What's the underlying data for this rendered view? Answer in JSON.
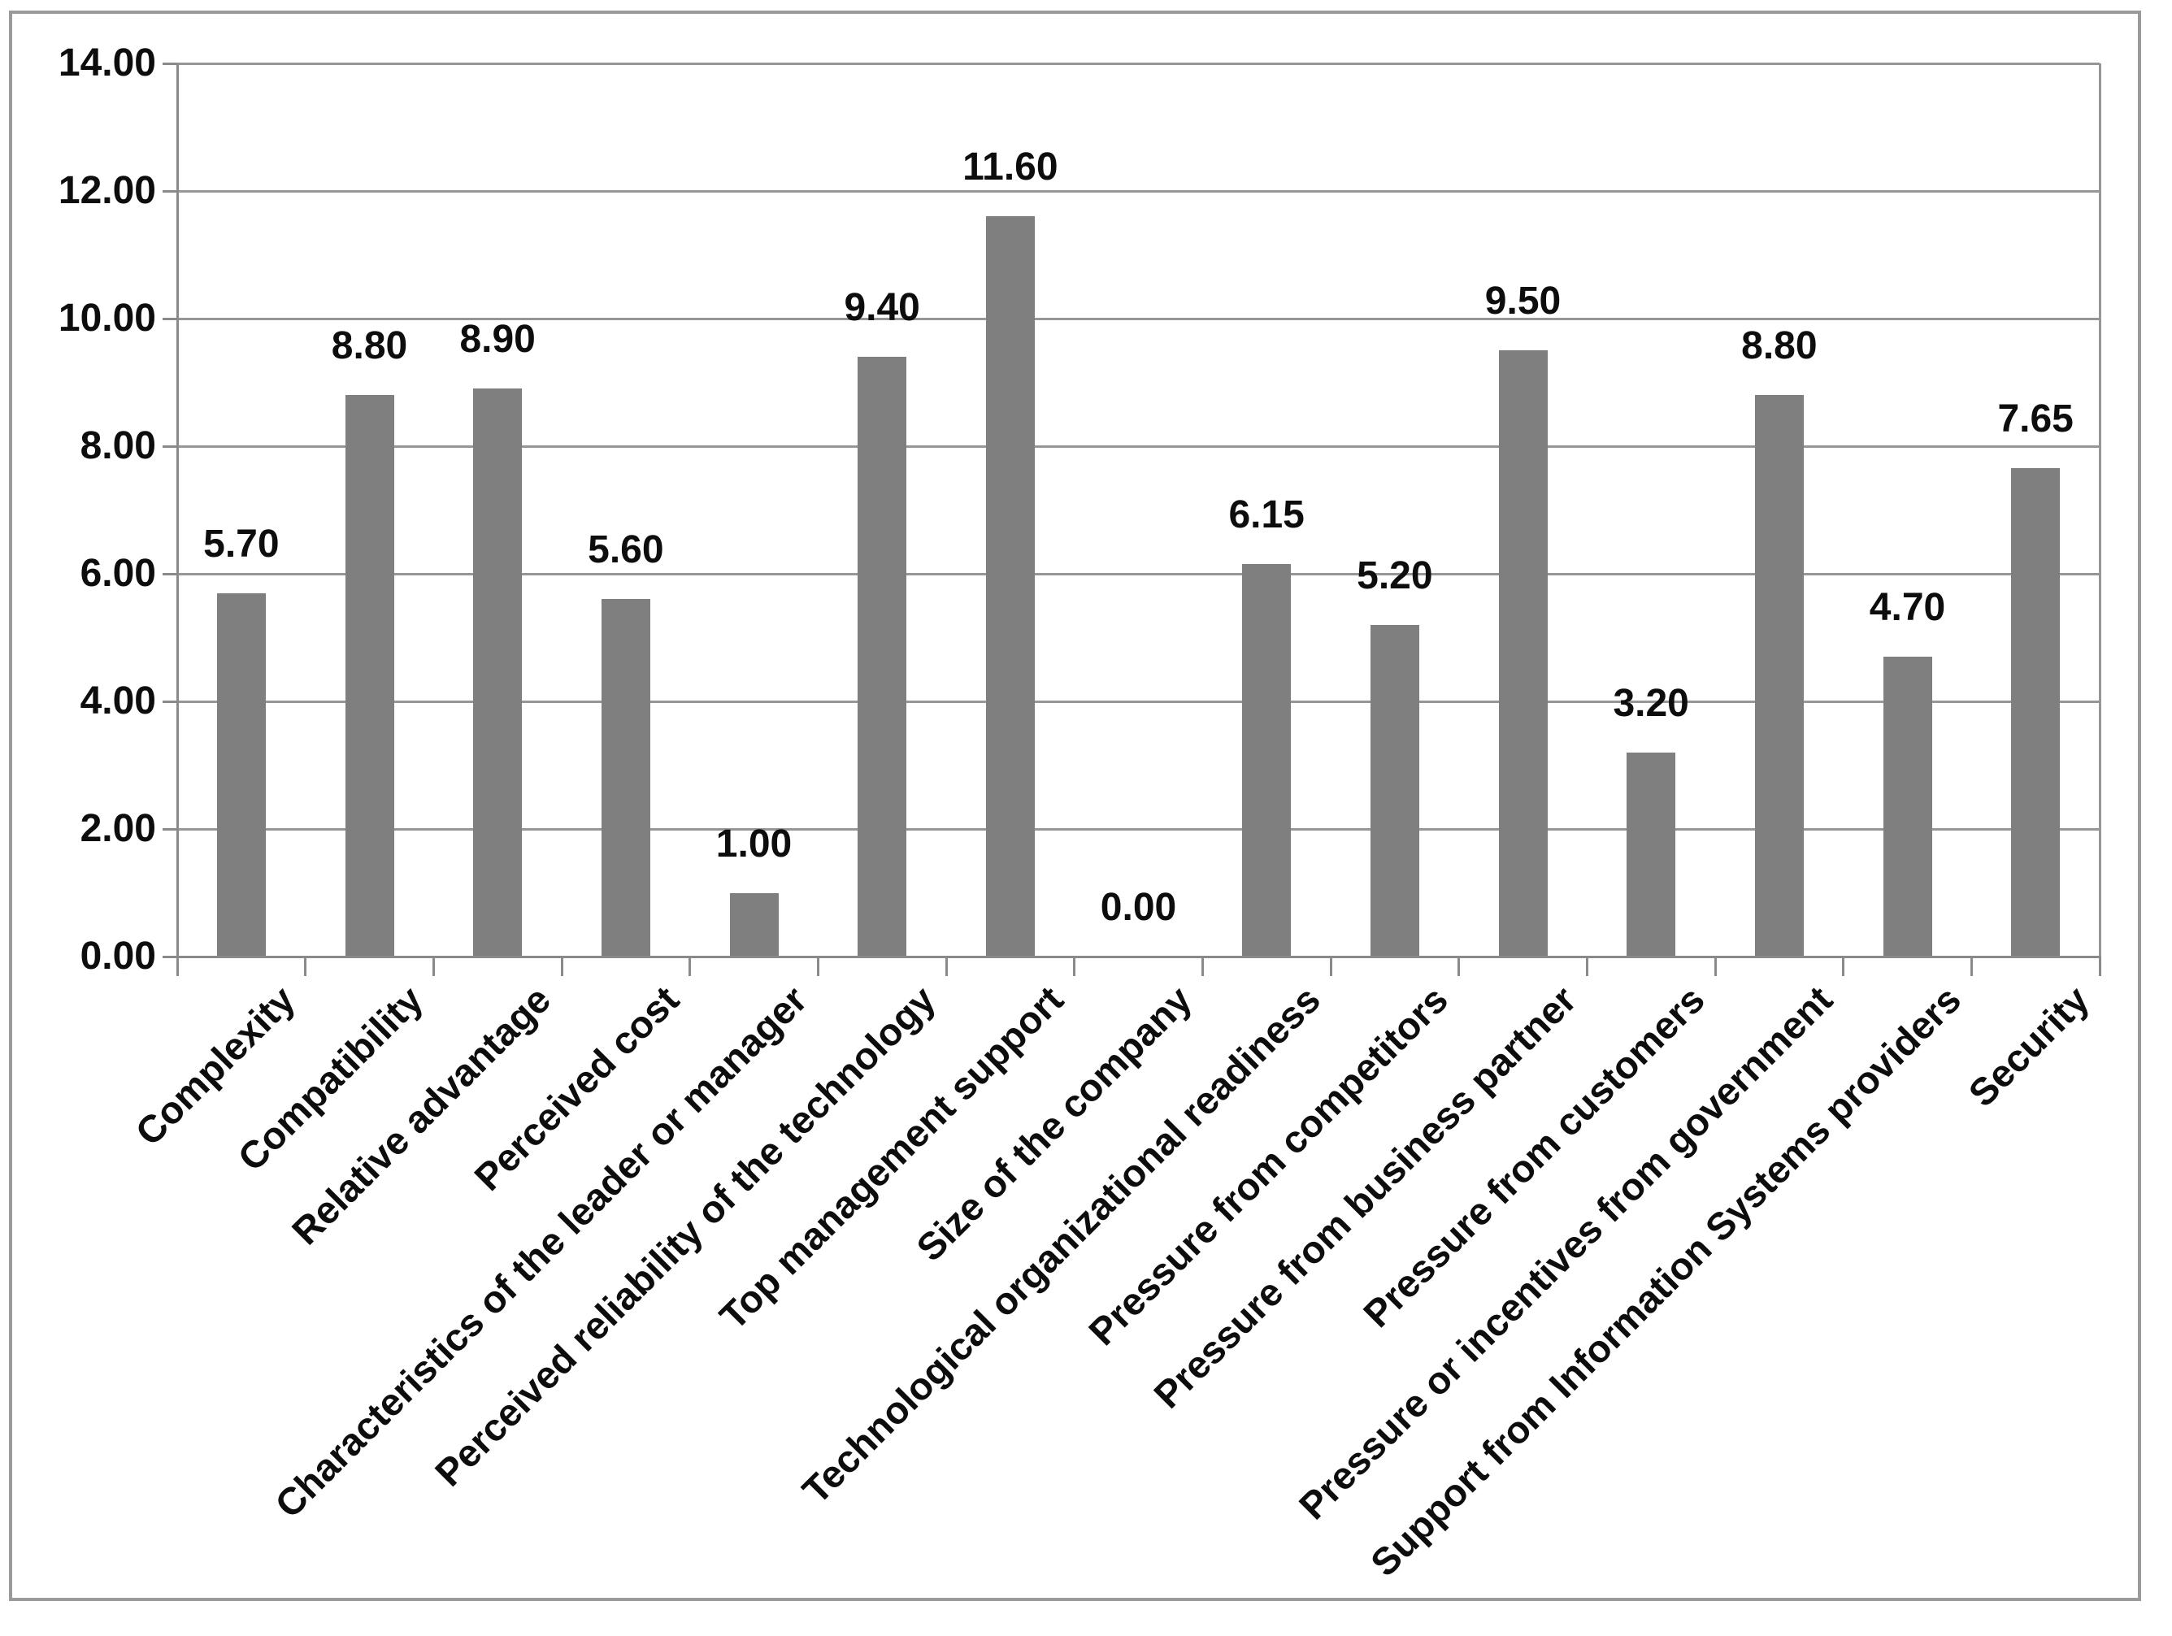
{
  "chart_data": {
    "type": "bar",
    "title": "",
    "xlabel": "",
    "ylabel": "",
    "categories": [
      "Complexity",
      "Compatibility",
      "Relative advantage",
      "Perceived cost",
      "Characteristics of the leader or manager",
      "Perceived reliability of the technology",
      "Top management support",
      "Size of the company",
      "Technological organizational readiness",
      "Pressure from competitors",
      "Pressure from business partner",
      "Pressure from customers",
      "Pressure or incentives from government",
      "Support from Information Systems providers",
      "Security"
    ],
    "values": [
      5.7,
      8.8,
      8.9,
      5.6,
      1.0,
      9.4,
      11.6,
      0.0,
      6.15,
      5.2,
      9.5,
      3.2,
      8.8,
      4.7,
      7.65
    ],
    "value_labels": [
      "5.70",
      "8.80",
      "8.90",
      "5.60",
      "1.00",
      "9.40",
      "11.60",
      "0.00",
      "6.15",
      "5.20",
      "9.50",
      "3.20",
      "8.80",
      "4.70",
      "7.65"
    ],
    "y_tick_labels": [
      "0.00",
      "2.00",
      "4.00",
      "6.00",
      "8.00",
      "10.00",
      "12.00",
      "14.00"
    ],
    "ylim": [
      0,
      14
    ],
    "y_tick_step": 2,
    "grid": true,
    "legend_position": "none",
    "colors": {
      "bar": "#7f7f7f",
      "gridline": "#969696",
      "axis": "#8a8a8a",
      "tick": "#8a8a8a",
      "outer_border": "#9a9a9a",
      "text": "#0d0d0d",
      "background": "#ffffff"
    }
  }
}
